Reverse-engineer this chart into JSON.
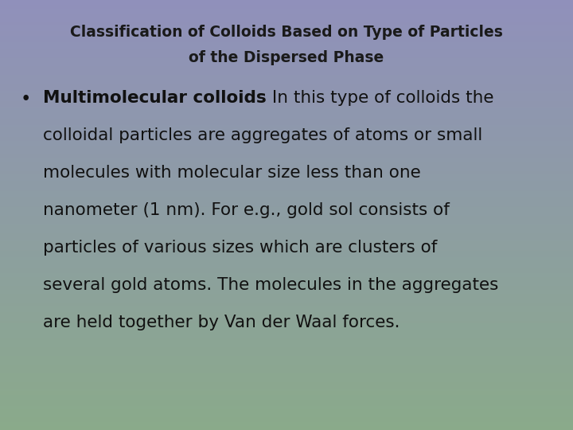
{
  "title_line1": "Classification of Colloids Based on Type of Particles",
  "title_line2": "of the Dispersed Phase",
  "title_fontsize": 13.5,
  "title_color": "#1a1a1a",
  "bullet_bold_text": "Multimolecular colloids",
  "bullet_normal_text": " In this type of colloids the colloidal particles are aggregates of atoms or small molecules with molecular size less than one nanometer (1 nm). For e.g., gold sol consists of particles of various sizes which are clusters of several gold atoms. The molecules in the aggregates are held together by Van der Waal forces.",
  "bullet_fontsize": 15.5,
  "text_color": "#111111",
  "bg_top_color": "#9090bb",
  "bg_bottom_color": "#8aaa8a",
  "gradient_steps": 500,
  "lines": [
    [
      "bold",
      "Multimolecular colloids",
      " In this type of colloids the"
    ],
    [
      "normal",
      "colloidal particles are aggregates of atoms or small"
    ],
    [
      "normal",
      "molecules with molecular size less than one"
    ],
    [
      "normal",
      "nanometer (1 nm). For e.g., gold sol consists of"
    ],
    [
      "normal",
      "particles of various sizes which are clusters of"
    ],
    [
      "normal",
      "several gold atoms. The molecules in the aggregates"
    ],
    [
      "normal",
      "are held together by Van der Waal forces."
    ]
  ]
}
